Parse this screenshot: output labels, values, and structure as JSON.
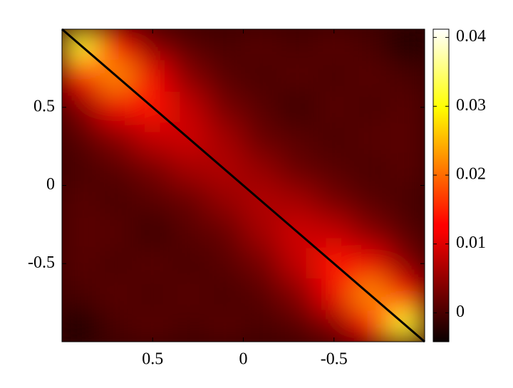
{
  "chart_data": {
    "type": "heatmap",
    "x": [
      0.9,
      0.7,
      0.5,
      0.3,
      0.1,
      -0.1,
      -0.3,
      -0.5,
      -0.7,
      -0.9
    ],
    "y": [
      0.9,
      0.7,
      0.5,
      0.3,
      0.1,
      -0.1,
      -0.3,
      -0.5,
      -0.7,
      -0.9
    ],
    "z": [
      [
        0.032,
        0.012,
        0.004,
        0.001,
        0.0,
        0.001,
        0.0,
        0.001,
        0.0,
        -0.003
      ],
      [
        0.012,
        0.022,
        0.011,
        0.004,
        0.001,
        0.0,
        0.001,
        0.0,
        0.001,
        0.0
      ],
      [
        0.004,
        0.011,
        0.014,
        0.008,
        0.003,
        0.001,
        -0.001,
        0.001,
        0.0,
        0.001
      ],
      [
        0.001,
        0.004,
        0.008,
        0.009,
        0.006,
        0.002,
        0.001,
        0.0,
        0.001,
        0.001
      ],
      [
        0.0,
        0.001,
        0.003,
        0.006,
        0.007,
        0.005,
        0.002,
        0.001,
        0.0,
        0.001
      ],
      [
        0.001,
        0.0,
        0.001,
        0.002,
        0.005,
        0.007,
        0.006,
        0.003,
        0.001,
        0.0
      ],
      [
        0.001,
        0.001,
        -0.001,
        0.001,
        0.002,
        0.006,
        0.009,
        0.008,
        0.004,
        0.001
      ],
      [
        0.001,
        0.0,
        0.001,
        0.0,
        0.001,
        0.003,
        0.008,
        0.014,
        0.011,
        0.004
      ],
      [
        0.0,
        0.001,
        0.0,
        0.001,
        0.0,
        0.001,
        0.004,
        0.011,
        0.022,
        0.012
      ],
      [
        -0.003,
        0.0,
        0.001,
        0.0,
        0.001,
        0.0,
        0.001,
        0.004,
        0.012,
        0.032
      ]
    ],
    "xlim": [
      1,
      -1
    ],
    "ylim": [
      -1,
      1
    ],
    "xticks": [
      0.5,
      0,
      -0.5
    ],
    "yticks": [
      0.5,
      0,
      -0.5
    ],
    "colormap": "hot",
    "clim": [
      -0.0042,
      0.0412
    ],
    "colorbar_ticks": [
      0,
      0.01,
      0.02,
      0.03,
      0.04
    ]
  }
}
